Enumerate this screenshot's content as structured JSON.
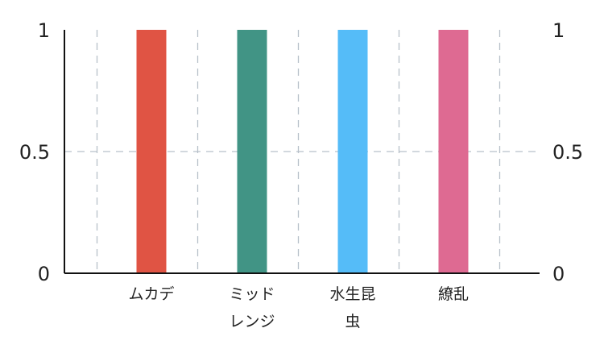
{
  "chart_data": {
    "type": "bar",
    "categories": [
      [
        "ムカデ"
      ],
      [
        "ミッド",
        "レンジ"
      ],
      [
        "水生昆",
        "虫"
      ],
      [
        "繚乱"
      ]
    ],
    "values": [
      1,
      1,
      1,
      1
    ],
    "colors": [
      "#e05444",
      "#419485",
      "#55bcf8",
      "#de6a92"
    ],
    "ylim": [
      0,
      1
    ],
    "yticks": [
      "0",
      "0.5",
      "1"
    ],
    "y_axis_sides": [
      "left",
      "right"
    ],
    "grid": true
  }
}
